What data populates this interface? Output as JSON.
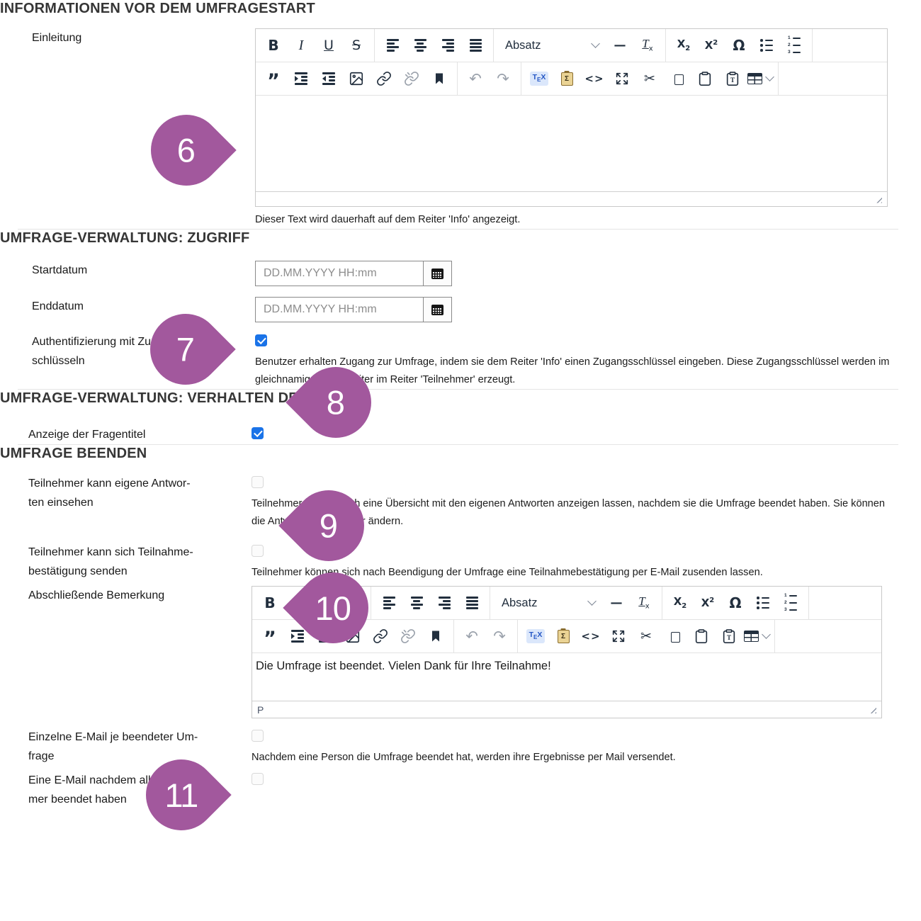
{
  "sections": {
    "info": {
      "heading": "INFORMATIONEN VOR DEM UMFRAGESTART",
      "einleitung": {
        "label": "Einleitung",
        "help": "Dieser Text wird dauerhaft auf dem Reiter 'Info' angezeigt."
      }
    },
    "zugriff": {
      "heading": "UMFRAGE-VERWALTUNG: ZUGRIFF",
      "startdatum": {
        "label": "Startdatum",
        "placeholder": "DD.MM.YYYY HH:mm"
      },
      "enddatum": {
        "label": "Enddatum",
        "placeholder": "DD.MM.YYYY HH:mm"
      },
      "auth": {
        "label_line1": "Authentifizierung mit Zugangs-",
        "label_line2": "schlüsseln",
        "checked": true,
        "help": "Benutzer erhalten Zugang zur Umfrage, indem sie dem Reiter 'Info' einen Zugangsschlüssel eingeben. Diese Zugangsschlüssel werden im gleichnamigen Unterreiter im Reiter 'Teilnehmer' erzeugt."
      }
    },
    "verhalten": {
      "heading": "UMFRAGE-VERWALTUNG: VERHALTEN DER FRAGE",
      "fragentitel": {
        "label": "Anzeige der Fragentitel",
        "checked": true
      }
    },
    "beenden": {
      "heading": "UMFRAGE BEENDEN",
      "antworten": {
        "label_line1": "Teilnehmer kann eigene Antwor-",
        "label_line2": "ten einsehen",
        "checked": false,
        "help": "Teilnehmer können sich eine Übersicht mit den eigenen Antworten anzeigen lassen, nachdem sie die Umfrage beendet haben. Sie können die Antworten nicht mehr ändern."
      },
      "bestaetigung": {
        "label_line1": "Teilnehmer kann sich Teilnahme-",
        "label_line2": "bestätigung senden",
        "checked": false,
        "help": "Teilnehmer können sich nach Beendigung der Umfrage eine Teilnahmebestätigung per E-Mail zusenden lassen."
      },
      "bemerkung": {
        "label": "Abschließende Bemerkung"
      },
      "einzelmail": {
        "label_line1": "Einzelne E-Mail je beendeter Um-",
        "label_line2": "frage",
        "checked": false,
        "help": "Nachdem eine Person die Umfrage beendet hat, werden ihre Ergebnisse per Mail versendet."
      },
      "sammelmail": {
        "label_line1": "Eine E-Mail nachdem alle Teilneh-",
        "label_line2": "mer beendet haben",
        "checked": false
      }
    }
  },
  "editor": {
    "paragraph_format_label": "Absatz",
    "toolbar_row1_groups": [
      [
        "bold",
        "italic",
        "underline",
        "strikethrough"
      ],
      [
        "align-left",
        "align-center",
        "align-right",
        "align-justify"
      ],
      [
        "paragraph-format",
        "horizontal-rule",
        "clear-formatting"
      ],
      [
        "subscript",
        "superscript",
        "special-character",
        "bullet-list",
        "numbered-list"
      ]
    ],
    "toolbar_row2_groups": [
      [
        "blockquote",
        "indent",
        "outdent",
        "image",
        "link",
        "unlink",
        "bookmark"
      ],
      [
        "undo",
        "redo"
      ],
      [
        "tex",
        "paste-special",
        "source-code",
        "fullscreen",
        "cut",
        "copy",
        "paste",
        "paste-text",
        "table"
      ]
    ]
  },
  "editors": {
    "einleitung": {
      "content": ""
    },
    "bemerkung": {
      "content": "Die Umfrage ist beendet. Vielen Dank für Ihre Teilnahme!",
      "status_bar": "P"
    }
  },
  "markers": [
    {
      "number": "6"
    },
    {
      "number": "7"
    },
    {
      "number": "8"
    },
    {
      "number": "9"
    },
    {
      "number": "10"
    },
    {
      "number": "11"
    }
  ],
  "colors": {
    "marker": "#a2589d",
    "checkbox_checked": "#1a73e8",
    "toolbar_icon": "#222f3e"
  }
}
